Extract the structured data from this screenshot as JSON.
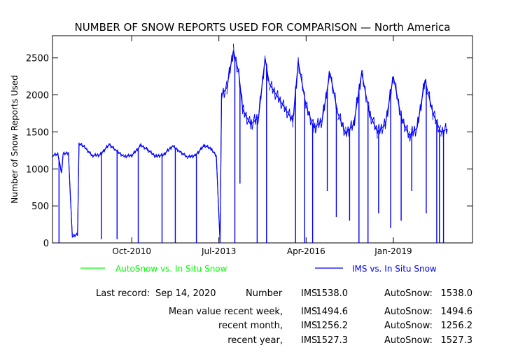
{
  "chart_data": {
    "type": "line",
    "title": "NUMBER OF SNOW REPORTS USED FOR COMPARISON — North America",
    "xlabel": "",
    "ylabel": "Number of Snow Reports Used",
    "ylim": [
      0,
      2800
    ],
    "y_ticks": [
      0,
      500,
      1000,
      1500,
      2000,
      2500
    ],
    "x_range": [
      "2008-04-01",
      "2021-07-01"
    ],
    "x_ticks": [
      {
        "label": "Oct-2010",
        "date": "2010-10-01"
      },
      {
        "label": "Jul-2013",
        "date": "2013-07-01"
      },
      {
        "label": "Apr-2016",
        "date": "2016-04-01"
      },
      {
        "label": "Jan-2019",
        "date": "2019-01-01"
      }
    ],
    "grid": false,
    "legend_position": "bottom",
    "series": [
      {
        "name": "AutoSnow vs. In Situ Snow",
        "color": "#00ff00",
        "points": []
      },
      {
        "name": "IMS vs. In Situ Snow",
        "color": "#0000ff",
        "points": [
          [
            "2008-04-01",
            1180
          ],
          [
            "2008-06-01",
            1200
          ],
          [
            "2008-07-15",
            950
          ],
          [
            "2008-08-01",
            1200
          ],
          [
            "2008-10-01",
            1220
          ],
          [
            "2008-11-15",
            80
          ],
          [
            "2009-01-15",
            120
          ],
          [
            "2009-02-01",
            1340
          ],
          [
            "2009-04-01",
            1300
          ],
          [
            "2009-07-01",
            1180
          ],
          [
            "2009-10-01",
            1190
          ],
          [
            "2010-01-15",
            1330
          ],
          [
            "2010-04-01",
            1250
          ],
          [
            "2010-07-01",
            1170
          ],
          [
            "2010-10-01",
            1180
          ],
          [
            "2011-01-15",
            1320
          ],
          [
            "2011-04-01",
            1260
          ],
          [
            "2011-07-01",
            1170
          ],
          [
            "2011-10-01",
            1190
          ],
          [
            "2012-01-15",
            1310
          ],
          [
            "2012-04-01",
            1240
          ],
          [
            "2012-07-01",
            1160
          ],
          [
            "2012-10-01",
            1180
          ],
          [
            "2013-01-15",
            1320
          ],
          [
            "2013-04-01",
            1270
          ],
          [
            "2013-06-01",
            1180
          ],
          [
            "2013-07-15",
            0
          ],
          [
            "2013-08-01",
            2000
          ],
          [
            "2013-10-01",
            2100
          ],
          [
            "2013-12-15",
            2600
          ],
          [
            "2014-02-15",
            2300
          ],
          [
            "2014-04-01",
            1800
          ],
          [
            "2014-07-01",
            1600
          ],
          [
            "2014-10-01",
            1700
          ],
          [
            "2014-12-15",
            2500
          ],
          [
            "2015-02-01",
            2150
          ],
          [
            "2015-11-01",
            1650
          ],
          [
            "2016-01-01",
            2450
          ],
          [
            "2016-04-01",
            1850
          ],
          [
            "2016-07-01",
            1550
          ],
          [
            "2016-10-01",
            1650
          ],
          [
            "2017-01-01",
            2300
          ],
          [
            "2017-04-01",
            1750
          ],
          [
            "2017-07-01",
            1480
          ],
          [
            "2017-10-01",
            1600
          ],
          [
            "2018-01-01",
            2300
          ],
          [
            "2018-04-01",
            1750
          ],
          [
            "2018-07-01",
            1500
          ],
          [
            "2018-10-01",
            1600
          ],
          [
            "2019-01-01",
            2250
          ],
          [
            "2019-04-01",
            1700
          ],
          [
            "2019-07-01",
            1450
          ],
          [
            "2019-10-01",
            1550
          ],
          [
            "2020-01-01",
            2200
          ],
          [
            "2020-04-01",
            1750
          ],
          [
            "2020-07-01",
            1500
          ],
          [
            "2020-09-14",
            1538
          ]
        ],
        "drops": [
          [
            "2008-06-15",
            0
          ],
          [
            "2009-10-15",
            50
          ],
          [
            "2010-04-15",
            50
          ],
          [
            "2010-12-15",
            0
          ],
          [
            "2011-09-15",
            0
          ],
          [
            "2012-02-15",
            0
          ],
          [
            "2012-10-15",
            0
          ],
          [
            "2014-01-01",
            0
          ],
          [
            "2014-03-01",
            800
          ],
          [
            "2014-09-15",
            0
          ],
          [
            "2015-01-01",
            0
          ],
          [
            "2015-12-01",
            0
          ],
          [
            "2016-03-15",
            0
          ],
          [
            "2016-06-15",
            0
          ],
          [
            "2016-12-01",
            700
          ],
          [
            "2017-03-15",
            350
          ],
          [
            "2017-08-15",
            300
          ],
          [
            "2017-12-01",
            0
          ],
          [
            "2018-03-15",
            0
          ],
          [
            "2018-07-15",
            400
          ],
          [
            "2018-12-01",
            200
          ],
          [
            "2019-04-01",
            300
          ],
          [
            "2019-08-01",
            700
          ],
          [
            "2020-01-15",
            400
          ],
          [
            "2020-05-15",
            0
          ],
          [
            "2020-06-15",
            0
          ],
          [
            "2020-08-01",
            0
          ]
        ]
      }
    ]
  },
  "stats": {
    "last_record_label": "Last record:",
    "last_record_date": "Sep 14, 2020",
    "number_label": "Number",
    "rows": [
      {
        "label": "",
        "ims_label": "IMS:",
        "ims_value": "1538.0",
        "auto_label": "AutoSnow:",
        "auto_value": "1538.0"
      },
      {
        "label": "Mean value recent week,",
        "ims_label": "IMS:",
        "ims_value": "1494.6",
        "auto_label": "AutoSnow:",
        "auto_value": "1494.6"
      },
      {
        "label": "recent month,",
        "ims_label": "IMS:",
        "ims_value": "1256.2",
        "auto_label": "AutoSnow:",
        "auto_value": "1256.2"
      },
      {
        "label": "recent year,",
        "ims_label": "IMS:",
        "ims_value": "1527.3",
        "auto_label": "AutoSnow:",
        "auto_value": "1527.3"
      }
    ]
  }
}
